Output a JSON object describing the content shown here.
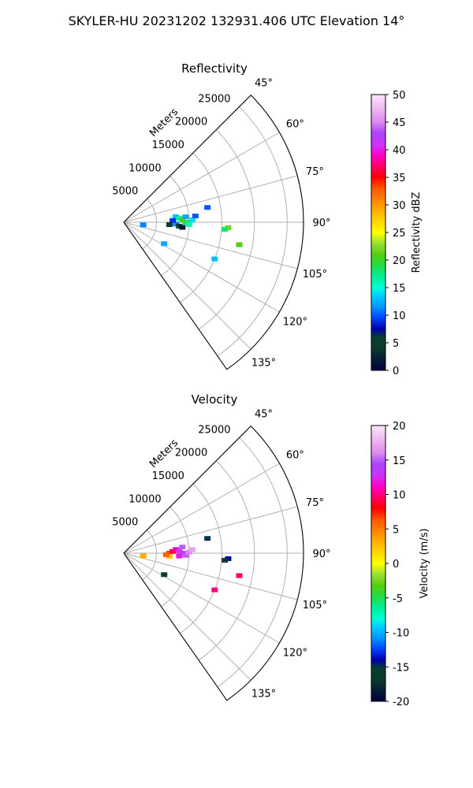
{
  "suptitle": "SKYLER-HU  20231202  132931.406 UTC Elevation 14°",
  "chart_data": [
    {
      "type": "polar-sector",
      "title": "Reflectivity",
      "radial_label": "Meters",
      "radial_ticks": [
        5000,
        10000,
        15000,
        20000,
        25000
      ],
      "r_max": 27500,
      "theta_range_deg": [
        45,
        145
      ],
      "theta_ticks_deg": [
        45,
        60,
        75,
        90,
        105,
        120,
        135
      ],
      "grid": true,
      "colorbar": {
        "label": "Reflectivity dBZ",
        "vmin": 0,
        "vmax": 50,
        "ticks": [
          0,
          5,
          10,
          15,
          20,
          25,
          30,
          35,
          40,
          45,
          50
        ],
        "stops": [
          [
            0,
            "#00003d"
          ],
          [
            0.08,
            "#0a3b2c"
          ],
          [
            0.12,
            "#083f30"
          ],
          [
            0.15,
            "#0000aa"
          ],
          [
            0.19,
            "#0044ff"
          ],
          [
            0.23,
            "#0099ff"
          ],
          [
            0.27,
            "#00ccff"
          ],
          [
            0.3,
            "#00ffd5"
          ],
          [
            0.34,
            "#00ee99"
          ],
          [
            0.38,
            "#22dd44"
          ],
          [
            0.42,
            "#55cc11"
          ],
          [
            0.46,
            "#99e033"
          ],
          [
            0.5,
            "#ffff00"
          ],
          [
            0.55,
            "#ffcc00"
          ],
          [
            0.6,
            "#ff9900"
          ],
          [
            0.66,
            "#ff5500"
          ],
          [
            0.7,
            "#ff0000"
          ],
          [
            0.74,
            "#ff0066"
          ],
          [
            0.78,
            "#ff00cc"
          ],
          [
            0.82,
            "#cc33ff"
          ],
          [
            0.86,
            "#aa44ff"
          ],
          [
            0.9,
            "#dd88ee"
          ],
          [
            0.95,
            "#f0b8f0"
          ],
          [
            1,
            "#fce6fc"
          ]
        ]
      },
      "echoes": [
        {
          "range": 8000,
          "az": 84,
          "value": 13
        },
        {
          "range": 8500,
          "az": 86,
          "value": 17
        },
        {
          "range": 9000,
          "az": 88,
          "value": 21
        },
        {
          "range": 9500,
          "az": 90,
          "value": 19
        },
        {
          "range": 10000,
          "az": 92,
          "value": 16
        },
        {
          "range": 8000,
          "az": 92,
          "value": 11
        },
        {
          "range": 7500,
          "az": 88,
          "value": 9
        },
        {
          "range": 9500,
          "az": 85,
          "value": 12
        },
        {
          "range": 10500,
          "az": 88,
          "value": 14
        },
        {
          "range": 11000,
          "az": 85,
          "value": 10
        },
        {
          "range": 8500,
          "az": 94,
          "value": 6
        },
        {
          "range": 9000,
          "az": 95,
          "value": 2
        },
        {
          "range": 7000,
          "az": 93,
          "value": 4
        },
        {
          "range": 16000,
          "az": 93,
          "value": 22
        },
        {
          "range": 15500,
          "az": 94,
          "value": 18
        },
        {
          "range": 13000,
          "az": 80,
          "value": 10
        },
        {
          "range": 3000,
          "az": 98,
          "value": 11
        },
        {
          "range": 18000,
          "az": 101,
          "value": 21
        },
        {
          "range": 15000,
          "az": 112,
          "value": 13
        },
        {
          "range": 7000,
          "az": 118,
          "value": 12
        }
      ]
    },
    {
      "type": "polar-sector",
      "title": "Velocity",
      "radial_label": "Meters",
      "radial_ticks": [
        5000,
        10000,
        15000,
        20000,
        25000
      ],
      "r_max": 27500,
      "theta_range_deg": [
        45,
        145
      ],
      "theta_ticks_deg": [
        45,
        60,
        75,
        90,
        105,
        120,
        135
      ],
      "grid": true,
      "colorbar": {
        "label": "Velocity (m/s)",
        "vmin": -20,
        "vmax": 20,
        "ticks": [
          -20,
          -15,
          -10,
          -5,
          0,
          5,
          10,
          15,
          20
        ],
        "stops": [
          [
            0,
            "#00003d"
          ],
          [
            0.08,
            "#0a3b2c"
          ],
          [
            0.12,
            "#083f30"
          ],
          [
            0.15,
            "#0000aa"
          ],
          [
            0.19,
            "#0044ff"
          ],
          [
            0.23,
            "#0099ff"
          ],
          [
            0.27,
            "#00ccff"
          ],
          [
            0.3,
            "#00ffd5"
          ],
          [
            0.34,
            "#00ee99"
          ],
          [
            0.38,
            "#22dd44"
          ],
          [
            0.42,
            "#55cc11"
          ],
          [
            0.46,
            "#99e033"
          ],
          [
            0.5,
            "#ffff00"
          ],
          [
            0.55,
            "#ffcc00"
          ],
          [
            0.6,
            "#ff9900"
          ],
          [
            0.66,
            "#ff5500"
          ],
          [
            0.7,
            "#ff0000"
          ],
          [
            0.74,
            "#ff0066"
          ],
          [
            0.78,
            "#ff00cc"
          ],
          [
            0.82,
            "#cc33ff"
          ],
          [
            0.86,
            "#aa44ff"
          ],
          [
            0.9,
            "#dd88ee"
          ],
          [
            0.95,
            "#f0b8f0"
          ],
          [
            1,
            "#fce6fc"
          ]
        ]
      },
      "echoes": [
        {
          "range": 7000,
          "az": 90,
          "value": 7
        },
        {
          "range": 7500,
          "az": 88,
          "value": 9
        },
        {
          "range": 8000,
          "az": 86,
          "value": 11
        },
        {
          "range": 8500,
          "az": 88,
          "value": 13
        },
        {
          "range": 9000,
          "az": 90,
          "value": 14
        },
        {
          "range": 9500,
          "az": 92,
          "value": 15
        },
        {
          "range": 10000,
          "az": 89,
          "value": 16
        },
        {
          "range": 10500,
          "az": 87,
          "value": 17
        },
        {
          "range": 8500,
          "az": 93,
          "value": 12
        },
        {
          "range": 7000,
          "az": 94,
          "value": 2
        },
        {
          "range": 6500,
          "az": 92,
          "value": 6
        },
        {
          "range": 9000,
          "az": 84,
          "value": 15
        },
        {
          "range": 16000,
          "az": 93,
          "value": -14
        },
        {
          "range": 15500,
          "az": 94,
          "value": -16
        },
        {
          "range": 13000,
          "az": 80,
          "value": -15
        },
        {
          "range": 3000,
          "az": 98,
          "value": 3
        },
        {
          "range": 18000,
          "az": 101,
          "value": 9
        },
        {
          "range": 15000,
          "az": 112,
          "value": 10
        },
        {
          "range": 7000,
          "az": 118,
          "value": -16
        }
      ]
    }
  ]
}
